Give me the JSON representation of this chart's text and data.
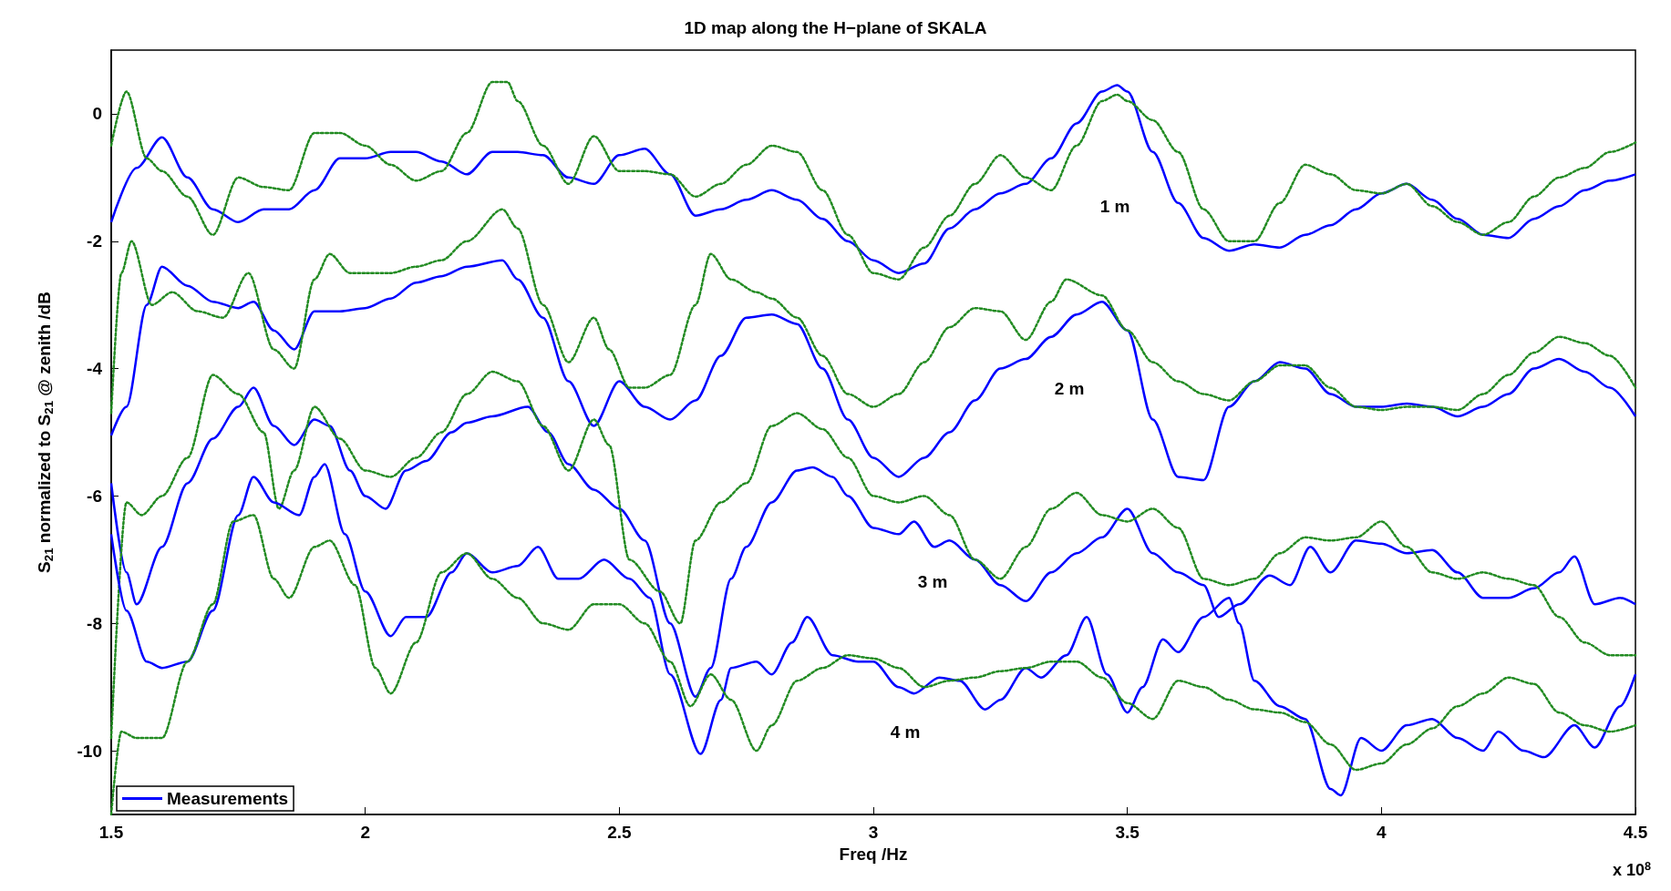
{
  "chart_data": {
    "type": "line",
    "title": "1D map along the H−plane of SKALA",
    "xlabel": "Freq /Hz",
    "ylabel": "S$_{21}$ normalized to S$_{21}$ @ zenith /dB",
    "xlim": [
      1.5,
      4.5
    ],
    "xticks": [
      1.5,
      2,
      2.5,
      3,
      3.5,
      4,
      4.5
    ],
    "ylim": [
      -11,
      1
    ],
    "yticks": [
      -10,
      -8,
      -6,
      -4,
      -2,
      0
    ],
    "grid": false,
    "legend": "bottom left",
    "marker": "none",
    "annotations": [
      "x 10$^{8}$",
      "1 m",
      "2 m",
      "3 m",
      "4 m"
    ],
    "series": [
      {
        "name": "Measurements",
        "color": "#0000ff",
        "line_style": "solid",
        "x": [
          1.5,
          1.55,
          1.6,
          1.65,
          1.7,
          1.75,
          1.8,
          1.85,
          1.9,
          1.95,
          2.0,
          2.05,
          2.1,
          2.15,
          2.2,
          2.25,
          2.3,
          2.35,
          2.4,
          2.45,
          2.5,
          2.55,
          2.6,
          2.65,
          2.7,
          2.75,
          2.8,
          2.85,
          2.9,
          2.95,
          3.0,
          3.05,
          3.1,
          3.15,
          3.2,
          3.25,
          3.3,
          3.35,
          3.4,
          3.45,
          3.48,
          3.5,
          3.55,
          3.6,
          3.65,
          3.7,
          3.75,
          3.8,
          3.85,
          3.9,
          3.95,
          4.0,
          4.05,
          4.1,
          4.15,
          4.2,
          4.25,
          4.3,
          4.35,
          4.4,
          4.45,
          4.5
        ],
        "values": [
          -1.7,
          -0.85,
          -0.37,
          -1.0,
          -1.5,
          -1.7,
          -1.5,
          -1.5,
          -1.2,
          -0.7,
          -0.7,
          -0.6,
          -0.6,
          -0.75,
          -0.95,
          -0.6,
          -0.6,
          -0.65,
          -1.0,
          -1.1,
          -0.65,
          -0.55,
          -0.95,
          -1.6,
          -1.5,
          -1.35,
          -1.2,
          -1.35,
          -1.65,
          -2.0,
          -2.3,
          -2.5,
          -2.35,
          -1.8,
          -1.5,
          -1.25,
          -1.1,
          -0.7,
          -0.15,
          0.35,
          0.45,
          0.35,
          -0.6,
          -1.4,
          -1.95,
          -2.15,
          -2.05,
          -2.1,
          -1.9,
          -1.75,
          -1.5,
          -1.25,
          -1.1,
          -1.35,
          -1.65,
          -1.9,
          -1.95,
          -1.65,
          -1.45,
          -1.2,
          -1.05,
          -0.95
        ]
      },
      {
        "color": "#228b22",
        "line_style": "dotted",
        "x": [
          1.5,
          1.53,
          1.57,
          1.6,
          1.65,
          1.7,
          1.75,
          1.8,
          1.85,
          1.9,
          1.95,
          2.0,
          2.05,
          2.1,
          2.15,
          2.2,
          2.25,
          2.28,
          2.3,
          2.35,
          2.4,
          2.45,
          2.5,
          2.55,
          2.6,
          2.65,
          2.7,
          2.75,
          2.8,
          2.85,
          2.9,
          2.95,
          3.0,
          3.05,
          3.1,
          3.15,
          3.2,
          3.25,
          3.3,
          3.35,
          3.4,
          3.45,
          3.48,
          3.5,
          3.55,
          3.6,
          3.65,
          3.7,
          3.75,
          3.8,
          3.85,
          3.9,
          3.95,
          4.0,
          4.05,
          4.1,
          4.15,
          4.2,
          4.25,
          4.3,
          4.35,
          4.4,
          4.45,
          4.5
        ],
        "values": [
          -0.5,
          0.35,
          -0.7,
          -0.9,
          -1.3,
          -1.9,
          -1.0,
          -1.15,
          -1.2,
          -0.3,
          -0.3,
          -0.5,
          -0.8,
          -1.05,
          -0.9,
          -0.3,
          0.5,
          0.5,
          0.2,
          -0.5,
          -1.1,
          -0.35,
          -0.9,
          -0.9,
          -0.95,
          -1.3,
          -1.1,
          -0.8,
          -0.5,
          -0.6,
          -1.2,
          -1.9,
          -2.5,
          -2.6,
          -2.1,
          -1.6,
          -1.1,
          -0.65,
          -1.0,
          -1.2,
          -0.5,
          0.2,
          0.3,
          0.2,
          -0.1,
          -0.6,
          -1.5,
          -2.0,
          -2.0,
          -1.4,
          -0.8,
          -0.95,
          -1.2,
          -1.25,
          -1.1,
          -1.45,
          -1.7,
          -1.9,
          -1.7,
          -1.3,
          -1.0,
          -0.85,
          -0.6,
          -0.45
        ]
      },
      {
        "color": "#0000ff",
        "line_style": "solid",
        "x": [
          1.5,
          1.53,
          1.57,
          1.6,
          1.65,
          1.7,
          1.75,
          1.78,
          1.82,
          1.86,
          1.9,
          1.95,
          2.0,
          2.05,
          2.1,
          2.15,
          2.2,
          2.27,
          2.3,
          2.35,
          2.4,
          2.45,
          2.5,
          2.55,
          2.6,
          2.65,
          2.7,
          2.75,
          2.8,
          2.85,
          2.9,
          2.95,
          3.0,
          3.05,
          3.1,
          3.15,
          3.2,
          3.25,
          3.3,
          3.35,
          3.4,
          3.45,
          3.5,
          3.55,
          3.6,
          3.65,
          3.7,
          3.75,
          3.8,
          3.85,
          3.9,
          3.95,
          4.0,
          4.05,
          4.1,
          4.15,
          4.2,
          4.25,
          4.3,
          4.35,
          4.4,
          4.45,
          4.5
        ],
        "values": [
          -5.05,
          -4.6,
          -3.0,
          -2.4,
          -2.7,
          -2.95,
          -3.05,
          -2.95,
          -3.4,
          -3.7,
          -3.1,
          -3.1,
          -3.05,
          -2.9,
          -2.65,
          -2.55,
          -2.4,
          -2.3,
          -2.6,
          -3.2,
          -4.2,
          -4.9,
          -4.2,
          -4.6,
          -4.8,
          -4.5,
          -3.8,
          -3.2,
          -3.15,
          -3.3,
          -4.0,
          -4.8,
          -5.4,
          -5.7,
          -5.4,
          -5.0,
          -4.5,
          -4.0,
          -3.85,
          -3.5,
          -3.15,
          -2.95,
          -3.4,
          -4.8,
          -5.7,
          -5.75,
          -4.6,
          -4.2,
          -3.9,
          -4.0,
          -4.4,
          -4.6,
          -4.6,
          -4.55,
          -4.6,
          -4.75,
          -4.6,
          -4.4,
          -4.0,
          -3.85,
          -4.05,
          -4.3,
          -4.75
        ]
      },
      {
        "color": "#228b22",
        "line_style": "dotted",
        "x": [
          1.5,
          1.52,
          1.54,
          1.58,
          1.62,
          1.67,
          1.72,
          1.77,
          1.82,
          1.86,
          1.9,
          1.93,
          1.97,
          2.0,
          2.05,
          2.1,
          2.15,
          2.2,
          2.27,
          2.3,
          2.35,
          2.4,
          2.45,
          2.48,
          2.52,
          2.55,
          2.6,
          2.65,
          2.68,
          2.72,
          2.77,
          2.8,
          2.85,
          2.9,
          2.95,
          3.0,
          3.05,
          3.1,
          3.15,
          3.2,
          3.25,
          3.3,
          3.35,
          3.38,
          3.45,
          3.5,
          3.55,
          3.6,
          3.65,
          3.7,
          3.75,
          3.8,
          3.85,
          3.9,
          3.95,
          4.0,
          4.05,
          4.1,
          4.15,
          4.2,
          4.25,
          4.3,
          4.35,
          4.4,
          4.45,
          4.5
        ],
        "values": [
          -4.7,
          -2.5,
          -2.0,
          -3.0,
          -2.8,
          -3.1,
          -3.2,
          -2.5,
          -3.7,
          -4.0,
          -2.6,
          -2.2,
          -2.5,
          -2.5,
          -2.5,
          -2.4,
          -2.3,
          -2.0,
          -1.5,
          -1.8,
          -3.0,
          -3.9,
          -3.2,
          -3.7,
          -4.3,
          -4.3,
          -4.1,
          -3.0,
          -2.2,
          -2.6,
          -2.8,
          -2.9,
          -3.2,
          -3.8,
          -4.4,
          -4.6,
          -4.4,
          -3.9,
          -3.35,
          -3.05,
          -3.1,
          -3.55,
          -2.95,
          -2.6,
          -2.85,
          -3.4,
          -3.9,
          -4.2,
          -4.4,
          -4.5,
          -4.2,
          -3.95,
          -3.95,
          -4.3,
          -4.6,
          -4.65,
          -4.6,
          -4.6,
          -4.65,
          -4.4,
          -4.1,
          -3.75,
          -3.5,
          -3.6,
          -3.8,
          -4.3
        ]
      },
      {
        "color": "#0000ff",
        "line_style": "solid",
        "x": [
          1.5,
          1.53,
          1.55,
          1.6,
          1.65,
          1.7,
          1.75,
          1.78,
          1.82,
          1.86,
          1.9,
          1.93,
          1.97,
          2.0,
          2.04,
          2.08,
          2.12,
          2.17,
          2.2,
          2.25,
          2.32,
          2.36,
          2.4,
          2.45,
          2.5,
          2.55,
          2.6,
          2.65,
          2.68,
          2.72,
          2.75,
          2.8,
          2.85,
          2.88,
          2.92,
          2.95,
          3.0,
          3.05,
          3.08,
          3.12,
          3.15,
          3.2,
          3.25,
          3.3,
          3.35,
          3.4,
          3.45,
          3.5,
          3.55,
          3.6,
          3.65,
          3.68,
          3.72,
          3.78,
          3.82,
          3.86,
          3.9,
          3.95,
          4.0,
          4.05,
          4.1,
          4.15,
          4.2,
          4.25,
          4.3,
          4.35,
          4.38,
          4.42,
          4.47,
          4.5
        ],
        "values": [
          -5.8,
          -7.2,
          -7.7,
          -6.8,
          -5.8,
          -5.1,
          -4.6,
          -4.3,
          -4.9,
          -5.2,
          -4.8,
          -4.9,
          -5.6,
          -6.0,
          -6.2,
          -5.6,
          -5.45,
          -5.0,
          -4.85,
          -4.75,
          -4.6,
          -5.0,
          -5.5,
          -5.9,
          -6.2,
          -6.7,
          -8.0,
          -9.15,
          -8.7,
          -7.3,
          -6.8,
          -6.1,
          -5.6,
          -5.55,
          -5.7,
          -6.0,
          -6.5,
          -6.6,
          -6.4,
          -6.8,
          -6.7,
          -7.0,
          -7.4,
          -7.65,
          -7.2,
          -6.9,
          -6.65,
          -6.2,
          -6.9,
          -7.2,
          -7.4,
          -7.9,
          -7.7,
          -7.25,
          -7.4,
          -6.8,
          -7.2,
          -6.7,
          -6.75,
          -6.9,
          -6.85,
          -7.2,
          -7.6,
          -7.6,
          -7.45,
          -7.2,
          -6.95,
          -7.7,
          -7.6,
          -7.7
        ]
      },
      {
        "color": "#228b22",
        "line_style": "dotted",
        "x": [
          1.5,
          1.53,
          1.56,
          1.6,
          1.65,
          1.7,
          1.75,
          1.8,
          1.83,
          1.86,
          1.9,
          1.95,
          2.0,
          2.05,
          2.1,
          2.15,
          2.2,
          2.25,
          2.3,
          2.35,
          2.4,
          2.45,
          2.48,
          2.52,
          2.58,
          2.62,
          2.65,
          2.7,
          2.75,
          2.8,
          2.85,
          2.9,
          2.95,
          3.0,
          3.05,
          3.1,
          3.15,
          3.2,
          3.25,
          3.3,
          3.35,
          3.4,
          3.45,
          3.5,
          3.55,
          3.6,
          3.65,
          3.7,
          3.75,
          3.8,
          3.85,
          3.9,
          3.95,
          4.0,
          4.05,
          4.1,
          4.15,
          4.2,
          4.25,
          4.3,
          4.35,
          4.4,
          4.45,
          4.5
        ],
        "values": [
          -9.8,
          -6.1,
          -6.3,
          -6.0,
          -5.4,
          -4.1,
          -4.4,
          -5.0,
          -6.2,
          -5.6,
          -4.6,
          -5.1,
          -5.6,
          -5.7,
          -5.4,
          -5.0,
          -4.4,
          -4.05,
          -4.2,
          -4.9,
          -5.6,
          -4.8,
          -5.2,
          -7.0,
          -7.5,
          -8.0,
          -6.7,
          -6.1,
          -5.8,
          -4.9,
          -4.7,
          -4.95,
          -5.4,
          -6.0,
          -6.1,
          -6.0,
          -6.3,
          -7.0,
          -7.3,
          -6.8,
          -6.2,
          -5.95,
          -6.3,
          -6.4,
          -6.2,
          -6.5,
          -7.3,
          -7.4,
          -7.3,
          -6.9,
          -6.65,
          -6.7,
          -6.65,
          -6.4,
          -6.8,
          -7.2,
          -7.3,
          -7.2,
          -7.3,
          -7.4,
          -7.9,
          -8.3,
          -8.5,
          -8.5
        ]
      },
      {
        "color": "#0000ff",
        "line_style": "solid",
        "x": [
          1.5,
          1.53,
          1.57,
          1.6,
          1.65,
          1.7,
          1.75,
          1.78,
          1.82,
          1.87,
          1.9,
          1.92,
          1.96,
          2.0,
          2.05,
          2.08,
          2.12,
          2.17,
          2.2,
          2.25,
          2.3,
          2.34,
          2.38,
          2.42,
          2.47,
          2.52,
          2.56,
          2.6,
          2.66,
          2.7,
          2.72,
          2.77,
          2.8,
          2.84,
          2.87,
          2.92,
          2.97,
          3.0,
          3.05,
          3.08,
          3.13,
          3.17,
          3.22,
          3.25,
          3.3,
          3.33,
          3.38,
          3.42,
          3.46,
          3.5,
          3.53,
          3.57,
          3.6,
          3.65,
          3.7,
          3.72,
          3.75,
          3.8,
          3.85,
          3.9,
          3.92,
          3.96,
          4.0,
          4.05,
          4.1,
          4.15,
          4.2,
          4.23,
          4.28,
          4.32,
          4.38,
          4.42,
          4.47,
          4.5
        ],
        "values": [
          -6.6,
          -7.8,
          -8.6,
          -8.7,
          -8.6,
          -7.8,
          -6.3,
          -5.7,
          -6.1,
          -6.3,
          -5.7,
          -5.5,
          -6.6,
          -7.5,
          -8.2,
          -7.9,
          -7.9,
          -7.2,
          -6.9,
          -7.2,
          -7.1,
          -6.8,
          -7.3,
          -7.3,
          -7.0,
          -7.3,
          -7.6,
          -8.8,
          -10.05,
          -9.2,
          -8.7,
          -8.6,
          -8.8,
          -8.3,
          -7.9,
          -8.5,
          -8.6,
          -8.6,
          -9.0,
          -9.1,
          -8.85,
          -8.9,
          -9.35,
          -9.2,
          -8.7,
          -8.85,
          -8.5,
          -7.9,
          -8.8,
          -9.4,
          -9.0,
          -8.25,
          -8.45,
          -7.9,
          -7.6,
          -8.0,
          -8.9,
          -9.3,
          -9.5,
          -10.6,
          -10.7,
          -9.8,
          -10.0,
          -9.6,
          -9.5,
          -9.8,
          -10.0,
          -9.7,
          -10.0,
          -10.1,
          -9.6,
          -9.95,
          -9.3,
          -8.8
        ]
      },
      {
        "color": "#228b22",
        "line_style": "dotted",
        "x": [
          1.5,
          1.52,
          1.55,
          1.6,
          1.65,
          1.7,
          1.74,
          1.78,
          1.82,
          1.85,
          1.9,
          1.93,
          1.98,
          2.02,
          2.05,
          2.1,
          2.15,
          2.2,
          2.25,
          2.3,
          2.35,
          2.4,
          2.45,
          2.5,
          2.55,
          2.6,
          2.64,
          2.68,
          2.72,
          2.77,
          2.8,
          2.85,
          2.9,
          2.95,
          3.0,
          3.05,
          3.1,
          3.15,
          3.2,
          3.25,
          3.3,
          3.35,
          3.4,
          3.45,
          3.5,
          3.55,
          3.6,
          3.65,
          3.7,
          3.75,
          3.8,
          3.85,
          3.9,
          3.95,
          4.0,
          4.05,
          4.1,
          4.15,
          4.2,
          4.25,
          4.3,
          4.35,
          4.4,
          4.45,
          4.5
        ],
        "values": [
          -11.0,
          -9.7,
          -9.8,
          -9.8,
          -8.6,
          -7.7,
          -6.4,
          -6.3,
          -7.3,
          -7.6,
          -6.8,
          -6.7,
          -7.4,
          -8.7,
          -9.1,
          -8.3,
          -7.2,
          -6.9,
          -7.3,
          -7.6,
          -8.0,
          -8.1,
          -7.7,
          -7.7,
          -8.0,
          -8.6,
          -9.3,
          -8.8,
          -9.2,
          -10.0,
          -9.6,
          -8.9,
          -8.7,
          -8.5,
          -8.55,
          -8.7,
          -9.0,
          -8.9,
          -8.85,
          -8.75,
          -8.7,
          -8.6,
          -8.6,
          -8.85,
          -9.25,
          -9.5,
          -8.9,
          -9.0,
          -9.2,
          -9.35,
          -9.4,
          -9.55,
          -9.9,
          -10.3,
          -10.2,
          -9.9,
          -9.65,
          -9.3,
          -9.1,
          -8.85,
          -8.95,
          -9.4,
          -9.6,
          -9.7,
          -9.6
        ]
      }
    ]
  }
}
